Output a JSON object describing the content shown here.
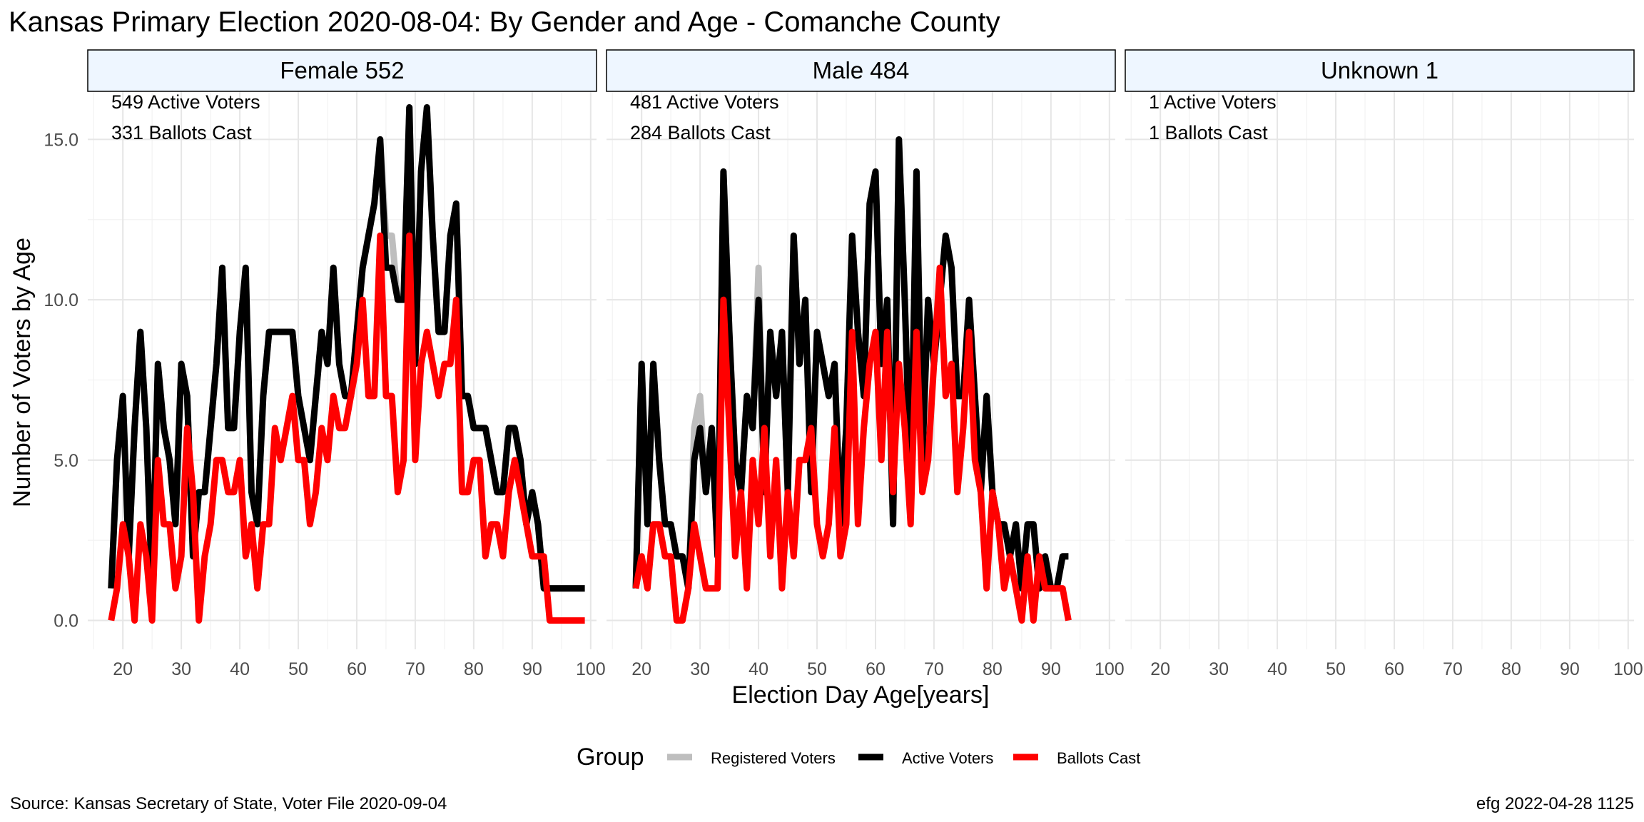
{
  "chart_data": {
    "type": "line",
    "title": "Kansas Primary Election 2020-08-04:  By Gender and Age - Comanche County",
    "xlabel": "Election Day Age[years]",
    "ylabel": "Number of Voters by Age",
    "xlim": [
      14,
      101
    ],
    "ylim": [
      -0.9,
      16.5
    ],
    "xticks": [
      20,
      30,
      40,
      50,
      60,
      70,
      80,
      90,
      100
    ],
    "yticks": [
      0,
      5,
      10,
      15
    ],
    "ytick_labels": [
      "0.0",
      "5.0",
      "10.0",
      "15.0"
    ],
    "grid": true,
    "legend": {
      "title": "Group",
      "position": "bottom",
      "entries": [
        {
          "name": "Registered Voters",
          "color": "#BEBEBE"
        },
        {
          "name": "Active Voters",
          "color": "#000000"
        },
        {
          "name": "Ballots Cast",
          "color": "#FF0000"
        }
      ]
    },
    "panels": [
      {
        "label": "Female 552",
        "annotations": [
          "549 Active Voters",
          "331 Ballots Cast"
        ],
        "series": [
          {
            "name": "Registered Voters",
            "color": "#BEBEBE",
            "x": [
              18,
              19,
              20,
              21,
              22,
              23,
              24,
              25,
              26,
              27,
              28,
              29,
              30,
              31,
              32,
              33,
              34,
              35,
              36,
              37,
              38,
              39,
              40,
              41,
              42,
              43,
              44,
              45,
              46,
              47,
              48,
              49,
              50,
              51,
              52,
              53,
              54,
              55,
              56,
              57,
              58,
              59,
              60,
              61,
              62,
              63,
              64,
              65,
              66,
              67,
              68,
              69,
              70,
              71,
              72,
              73,
              74,
              75,
              76,
              77,
              78,
              79,
              80,
              81,
              82,
              83,
              84,
              85,
              86,
              87,
              88,
              89,
              90,
              91,
              92,
              93,
              94,
              95,
              96,
              97,
              98,
              99
            ],
            "y": [
              1,
              5,
              7,
              2,
              6,
              9,
              6,
              1,
              8,
              6,
              5,
              3,
              8,
              7,
              2,
              4,
              4,
              6,
              8,
              11,
              6,
              6,
              9,
              11,
              4,
              3,
              7,
              9,
              9,
              9,
              9,
              9,
              7,
              6,
              5,
              7,
              9,
              8,
              11,
              8,
              7,
              7,
              9,
              11,
              12,
              13,
              15,
              12,
              12,
              10,
              10,
              16,
              8,
              14,
              16,
              12,
              9,
              9,
              12,
              13,
              7,
              7,
              6,
              6,
              6,
              5,
              4,
              4,
              6,
              6,
              5,
              3,
              4,
              3,
              1,
              1,
              1,
              1,
              1,
              1,
              1,
              1
            ]
          },
          {
            "name": "Active Voters",
            "color": "#000000",
            "x": [
              18,
              19,
              20,
              21,
              22,
              23,
              24,
              25,
              26,
              27,
              28,
              29,
              30,
              31,
              32,
              33,
              34,
              35,
              36,
              37,
              38,
              39,
              40,
              41,
              42,
              43,
              44,
              45,
              46,
              47,
              48,
              49,
              50,
              51,
              52,
              53,
              54,
              55,
              56,
              57,
              58,
              59,
              60,
              61,
              62,
              63,
              64,
              65,
              66,
              67,
              68,
              69,
              70,
              71,
              72,
              73,
              74,
              75,
              76,
              77,
              78,
              79,
              80,
              81,
              82,
              83,
              84,
              85,
              86,
              87,
              88,
              89,
              90,
              91,
              92,
              93,
              94,
              95,
              96,
              97,
              98,
              99
            ],
            "y": [
              1,
              5,
              7,
              2,
              6,
              9,
              6,
              1,
              8,
              6,
              5,
              3,
              8,
              7,
              2,
              4,
              4,
              6,
              8,
              11,
              6,
              6,
              9,
              11,
              4,
              3,
              7,
              9,
              9,
              9,
              9,
              9,
              7,
              6,
              5,
              7,
              9,
              8,
              11,
              8,
              7,
              7,
              9,
              11,
              12,
              13,
              15,
              11,
              11,
              10,
              10,
              16,
              8,
              14,
              16,
              12,
              9,
              9,
              12,
              13,
              7,
              7,
              6,
              6,
              6,
              5,
              4,
              4,
              6,
              6,
              5,
              3,
              4,
              3,
              1,
              1,
              1,
              1,
              1,
              1,
              1,
              1
            ]
          },
          {
            "name": "Ballots Cast",
            "color": "#FF0000",
            "x": [
              18,
              19,
              20,
              21,
              22,
              23,
              24,
              25,
              26,
              27,
              28,
              29,
              30,
              31,
              32,
              33,
              34,
              35,
              36,
              37,
              38,
              39,
              40,
              41,
              42,
              43,
              44,
              45,
              46,
              47,
              48,
              49,
              50,
              51,
              52,
              53,
              54,
              55,
              56,
              57,
              58,
              59,
              60,
              61,
              62,
              63,
              64,
              65,
              66,
              67,
              68,
              69,
              70,
              71,
              72,
              73,
              74,
              75,
              76,
              77,
              78,
              79,
              80,
              81,
              82,
              83,
              84,
              85,
              86,
              87,
              88,
              89,
              90,
              91,
              92,
              93,
              94,
              95,
              96,
              97,
              98,
              99
            ],
            "y": [
              0,
              1,
              3,
              2,
              0,
              3,
              2,
              0,
              5,
              3,
              3,
              1,
              2,
              6,
              4,
              0,
              2,
              3,
              5,
              5,
              4,
              4,
              5,
              2,
              3,
              1,
              3,
              3,
              6,
              5,
              6,
              7,
              5,
              5,
              3,
              4,
              6,
              5,
              7,
              6,
              6,
              7,
              8,
              10,
              7,
              7,
              12,
              7,
              7,
              4,
              5,
              12,
              5,
              8,
              9,
              8,
              7,
              8,
              8,
              10,
              4,
              4,
              5,
              5,
              2,
              3,
              3,
              2,
              4,
              5,
              4,
              3,
              2,
              2,
              2,
              0,
              0,
              0,
              0,
              0,
              0,
              0
            ]
          }
        ]
      },
      {
        "label": "Male 484",
        "annotations": [
          "481 Active Voters",
          "284 Ballots Cast"
        ],
        "series": [
          {
            "name": "Registered Voters",
            "color": "#BEBEBE",
            "x": [
              19,
              20,
              21,
              22,
              23,
              24,
              25,
              26,
              27,
              28,
              29,
              30,
              31,
              32,
              33,
              34,
              35,
              36,
              37,
              38,
              39,
              40,
              41,
              42,
              43,
              44,
              45,
              46,
              47,
              48,
              49,
              50,
              51,
              52,
              53,
              54,
              55,
              56,
              57,
              58,
              59,
              60,
              61,
              62,
              63,
              64,
              65,
              66,
              67,
              68,
              69,
              70,
              71,
              72,
              73,
              74,
              75,
              76,
              77,
              78,
              79,
              80,
              81,
              82,
              83,
              84,
              85,
              86,
              87,
              88,
              89,
              90,
              91,
              92,
              93
            ],
            "y": [
              1,
              8,
              3,
              8,
              5,
              3,
              3,
              2,
              2,
              1,
              6,
              7,
              4,
              6,
              2,
              14,
              9,
              5,
              4,
              7,
              6,
              11,
              4,
              9,
              7,
              9,
              4,
              12,
              8,
              10,
              4,
              9,
              8,
              7,
              8,
              3,
              6,
              12,
              9,
              7,
              13,
              14,
              8,
              10,
              3,
              15,
              10,
              4,
              14,
              5,
              10,
              8,
              10,
              12,
              11,
              7,
              7,
              10,
              7,
              4,
              7,
              4,
              3,
              3,
              2,
              3,
              1,
              3,
              3,
              1,
              2,
              1,
              1,
              2,
              2
            ]
          },
          {
            "name": "Active Voters",
            "color": "#000000",
            "x": [
              19,
              20,
              21,
              22,
              23,
              24,
              25,
              26,
              27,
              28,
              29,
              30,
              31,
              32,
              33,
              34,
              35,
              36,
              37,
              38,
              39,
              40,
              41,
              42,
              43,
              44,
              45,
              46,
              47,
              48,
              49,
              50,
              51,
              52,
              53,
              54,
              55,
              56,
              57,
              58,
              59,
              60,
              61,
              62,
              63,
              64,
              65,
              66,
              67,
              68,
              69,
              70,
              71,
              72,
              73,
              74,
              75,
              76,
              77,
              78,
              79,
              80,
              81,
              82,
              83,
              84,
              85,
              86,
              87,
              88,
              89,
              90,
              91,
              92,
              93
            ],
            "y": [
              1,
              8,
              3,
              8,
              5,
              3,
              3,
              2,
              2,
              1,
              5,
              6,
              4,
              6,
              2,
              14,
              9,
              5,
              4,
              7,
              6,
              10,
              4,
              9,
              7,
              9,
              4,
              12,
              8,
              10,
              4,
              9,
              8,
              7,
              8,
              3,
              6,
              12,
              9,
              7,
              13,
              14,
              8,
              10,
              3,
              15,
              10,
              4,
              14,
              5,
              10,
              8,
              10,
              12,
              11,
              7,
              7,
              10,
              7,
              4,
              7,
              4,
              3,
              3,
              2,
              3,
              1,
              3,
              3,
              1,
              2,
              1,
              1,
              2,
              2
            ]
          },
          {
            "name": "Ballots Cast",
            "color": "#FF0000",
            "x": [
              19,
              20,
              21,
              22,
              23,
              24,
              25,
              26,
              27,
              28,
              29,
              30,
              31,
              32,
              33,
              34,
              35,
              36,
              37,
              38,
              39,
              40,
              41,
              42,
              43,
              44,
              45,
              46,
              47,
              48,
              49,
              50,
              51,
              52,
              53,
              54,
              55,
              56,
              57,
              58,
              59,
              60,
              61,
              62,
              63,
              64,
              65,
              66,
              67,
              68,
              69,
              70,
              71,
              72,
              73,
              74,
              75,
              76,
              77,
              78,
              79,
              80,
              81,
              82,
              83,
              84,
              85,
              86,
              87,
              88,
              89,
              90,
              91,
              92,
              93
            ],
            "y": [
              1,
              2,
              1,
              3,
              3,
              2,
              2,
              0,
              0,
              1,
              3,
              2,
              1,
              1,
              1,
              10,
              6,
              2,
              4,
              1,
              5,
              3,
              6,
              2,
              5,
              1,
              4,
              2,
              5,
              5,
              6,
              3,
              2,
              3,
              6,
              2,
              3,
              9,
              3,
              6,
              8,
              9,
              5,
              9,
              4,
              8,
              6,
              3,
              9,
              4,
              5,
              8,
              11,
              7,
              8,
              4,
              6,
              9,
              5,
              4,
              1,
              4,
              3,
              1,
              2,
              1,
              0,
              2,
              0,
              2,
              1,
              1,
              1,
              1,
              0
            ]
          }
        ]
      },
      {
        "label": "Unknown 1",
        "annotations": [
          "1 Active Voters",
          "1 Ballots Cast"
        ],
        "series": [
          {
            "name": "Registered Voters",
            "color": "#BEBEBE",
            "x": [],
            "y": []
          },
          {
            "name": "Active Voters",
            "color": "#000000",
            "x": [],
            "y": []
          },
          {
            "name": "Ballots Cast",
            "color": "#FF0000",
            "x": [],
            "y": []
          }
        ]
      }
    ]
  },
  "footer": {
    "source": "Source:  Kansas Secretary of State, Voter File  2020-09-04",
    "stamp": "efg 2022-04-28 1125"
  }
}
